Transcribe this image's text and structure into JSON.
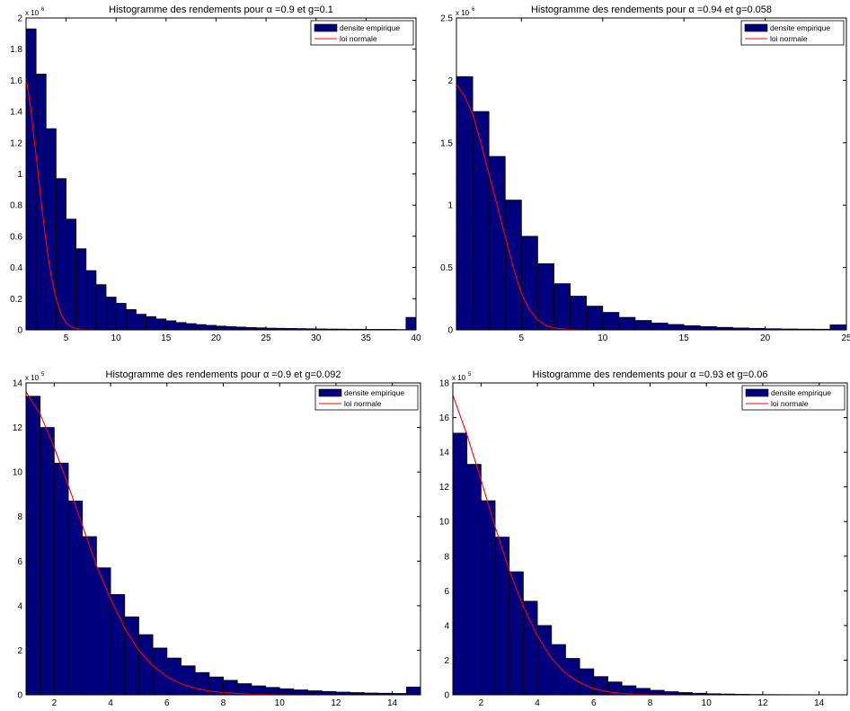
{
  "chart_data": [
    {
      "type": "bar",
      "title": "Histogramme des rendements pour α =0.9  et g=0.1",
      "xlabel": "",
      "ylabel": "",
      "y_multiplier_label": "x 10",
      "y_multiplier_exponent": "6",
      "xlim": [
        1,
        40
      ],
      "ylim": [
        0,
        2
      ],
      "xticks": [
        5,
        10,
        15,
        20,
        25,
        30,
        35,
        40
      ],
      "yticks": [
        0,
        0.2,
        0.4,
        0.6,
        0.8,
        1,
        1.2,
        1.4,
        1.6,
        1.8,
        2
      ],
      "ytick_labels": [
        "0",
        "0.2",
        "0.4",
        "0.6",
        "0.8",
        "1",
        "1.2",
        "1.4",
        "1.6",
        "1.8",
        "2"
      ],
      "grid": false,
      "legend": {
        "position": "top-right",
        "entries": [
          "densite empirique",
          "loi normale"
        ]
      },
      "bars": {
        "name": "densite empirique",
        "x_start": 1,
        "bin_width": 1,
        "values": [
          1.93,
          1.64,
          1.29,
          0.97,
          0.71,
          0.52,
          0.38,
          0.29,
          0.21,
          0.17,
          0.13,
          0.1,
          0.085,
          0.07,
          0.058,
          0.047,
          0.04,
          0.034,
          0.029,
          0.024,
          0.021,
          0.018,
          0.015,
          0.013,
          0.011,
          0.01,
          0.009,
          0.008,
          0.007,
          0.006,
          0.005,
          0.005,
          0.004,
          0.004,
          0.003,
          0.003,
          0.003,
          0.002,
          0.08
        ]
      },
      "line": {
        "name": "loi normale",
        "x": [
          1,
          1.5,
          2,
          2.5,
          3,
          3.5,
          4,
          4.5,
          5,
          5.5,
          6,
          6.5,
          7,
          8,
          9,
          10,
          12,
          15,
          40
        ],
        "y": [
          1.62,
          1.4,
          1.12,
          0.83,
          0.56,
          0.35,
          0.2,
          0.1,
          0.045,
          0.02,
          0.008,
          0.003,
          0.001,
          0,
          0,
          0,
          0,
          0,
          0
        ]
      }
    },
    {
      "type": "bar",
      "title": "Histogramme des rendements pour α =0.94  et g=0.058",
      "xlabel": "",
      "ylabel": "",
      "y_multiplier_label": "x 10",
      "y_multiplier_exponent": "6",
      "xlim": [
        1,
        25
      ],
      "ylim": [
        0,
        2.5
      ],
      "xticks": [
        5,
        10,
        15,
        20,
        25
      ],
      "yticks": [
        0,
        0.5,
        1,
        1.5,
        2,
        2.5
      ],
      "ytick_labels": [
        "0",
        "0.5",
        "1",
        "1.5",
        "2",
        "2.5"
      ],
      "grid": false,
      "legend": {
        "position": "top-right",
        "entries": [
          "densite empirique",
          "loi normale"
        ]
      },
      "bars": {
        "name": "densite empirique",
        "x_start": 1,
        "bin_width": 1,
        "values": [
          2.03,
          1.75,
          1.39,
          1.04,
          0.75,
          0.53,
          0.37,
          0.27,
          0.19,
          0.14,
          0.1,
          0.075,
          0.055,
          0.043,
          0.033,
          0.026,
          0.02,
          0.015,
          0.012,
          0.009,
          0.007,
          0.006,
          0.005,
          0.04
        ]
      },
      "line": {
        "name": "loi normale",
        "x": [
          1,
          1.5,
          2,
          2.5,
          3,
          3.5,
          4,
          4.5,
          5,
          5.5,
          6,
          6.5,
          7,
          8,
          9,
          10,
          15,
          25
        ],
        "y": [
          1.97,
          1.87,
          1.73,
          1.5,
          1.25,
          1.0,
          0.75,
          0.5,
          0.29,
          0.16,
          0.08,
          0.035,
          0.015,
          0.002,
          0,
          0,
          0,
          0
        ]
      }
    },
    {
      "type": "bar",
      "title": "Histogramme des rendements pour α =0.9  et g=0.092",
      "xlabel": "",
      "ylabel": "",
      "y_multiplier_label": "x 10",
      "y_multiplier_exponent": "5",
      "xlim": [
        1,
        15
      ],
      "ylim": [
        0,
        14
      ],
      "xticks": [
        2,
        4,
        6,
        8,
        10,
        12,
        14
      ],
      "yticks": [
        0,
        2,
        4,
        6,
        8,
        10,
        12,
        14
      ],
      "ytick_labels": [
        "0",
        "2",
        "4",
        "6",
        "8",
        "10",
        "12",
        "14"
      ],
      "grid": false,
      "legend": {
        "position": "top-right",
        "entries": [
          "densite empirique",
          "loi normale"
        ]
      },
      "bars": {
        "name": "densite empirique",
        "x_start": 1,
        "bin_width": 0.5,
        "values": [
          13.4,
          12.0,
          10.4,
          8.7,
          7.1,
          5.7,
          4.5,
          3.5,
          2.7,
          2.1,
          1.65,
          1.3,
          1.0,
          0.8,
          0.65,
          0.5,
          0.4,
          0.33,
          0.27,
          0.22,
          0.18,
          0.15,
          0.12,
          0.1,
          0.08,
          0.07,
          0.06,
          0.35
        ]
      },
      "line": {
        "name": "loi normale",
        "x": [
          1,
          1.5,
          2,
          2.5,
          3,
          3.5,
          4,
          4.5,
          5,
          5.5,
          6,
          6.5,
          7,
          7.5,
          8,
          8.5,
          9,
          10,
          11,
          12,
          15
        ],
        "y": [
          13.6,
          12.6,
          11.1,
          9.4,
          7.6,
          5.8,
          4.3,
          3.0,
          2.0,
          1.3,
          0.82,
          0.5,
          0.3,
          0.17,
          0.1,
          0.06,
          0.03,
          0.01,
          0,
          0,
          0
        ]
      }
    },
    {
      "type": "bar",
      "title": "Histogramme des rendements pour α =0.93  et g=0.06",
      "xlabel": "",
      "ylabel": "",
      "y_multiplier_label": "x 10",
      "y_multiplier_exponent": "5",
      "xlim": [
        1,
        15
      ],
      "ylim": [
        0,
        18
      ],
      "xticks": [
        2,
        4,
        6,
        8,
        10,
        12,
        14
      ],
      "yticks": [
        0,
        2,
        4,
        6,
        8,
        10,
        12,
        14,
        16,
        18
      ],
      "ytick_labels": [
        "0",
        "2",
        "4",
        "6",
        "8",
        "10",
        "12",
        "14",
        "16",
        "18"
      ],
      "grid": false,
      "legend": {
        "position": "top-right",
        "entries": [
          "densite empirique",
          "loi normale"
        ]
      },
      "bars": {
        "name": "densite empirique",
        "x_start": 1,
        "bin_width": 0.5,
        "values": [
          15.1,
          13.3,
          11.2,
          9.1,
          7.1,
          5.4,
          4.0,
          2.9,
          2.1,
          1.5,
          1.05,
          0.74,
          0.52,
          0.37,
          0.26,
          0.18,
          0.13,
          0.09,
          0.06,
          0.045,
          0.03,
          0.02,
          0.015,
          0.01,
          0.007,
          0.005,
          0.004,
          0.003
        ]
      },
      "line": {
        "name": "loi normale",
        "x": [
          1,
          1.5,
          2,
          2.5,
          3,
          3.5,
          4,
          4.5,
          5,
          5.5,
          6,
          6.5,
          7,
          7.5,
          8,
          9,
          10,
          12,
          15
        ],
        "y": [
          17.3,
          15.0,
          12.4,
          9.7,
          7.2,
          5.1,
          3.4,
          2.1,
          1.25,
          0.7,
          0.36,
          0.17,
          0.08,
          0.03,
          0.012,
          0.002,
          0,
          0,
          0
        ]
      }
    }
  ]
}
